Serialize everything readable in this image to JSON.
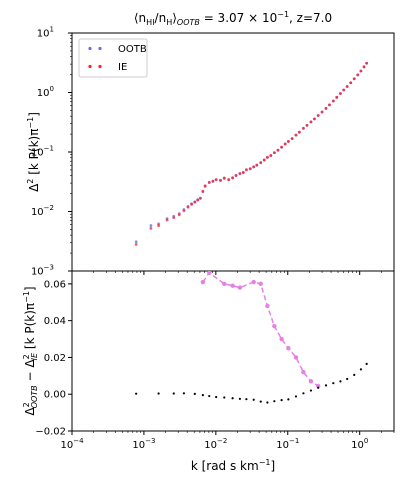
{
  "chart_data": [
    {
      "type": "scatter",
      "title_parts": {
        "lhs": "⟨n",
        "hi": "HI",
        "mid": "/n",
        "h": "H",
        "rb": "⟩",
        "ootb": "OOTB",
        "rest": " = 3.07 × 10",
        "exp": "−1",
        "z": ", z=7.0"
      },
      "ylabel_parts": {
        "d": "Δ",
        "two": "2",
        "mid": " [k P(k)π",
        "exp": "−1",
        "end": "]"
      },
      "xscale": "log",
      "yscale": "log",
      "xlim": [
        0.0001,
        3
      ],
      "ylim": [
        0.001,
        10
      ],
      "ytick_labels": [
        {
          "m": "10",
          "e": "−3",
          "v": 0.001
        },
        {
          "m": "10",
          "e": "−2",
          "v": 0.01
        },
        {
          "m": "10",
          "e": "−1",
          "v": 0.1
        },
        {
          "m": "10",
          "e": "0",
          "v": 1
        },
        {
          "m": "10",
          "e": "1",
          "v": 10
        }
      ],
      "legend": {
        "placement": "upper-left",
        "entries": [
          "OOTB",
          "IE"
        ]
      },
      "series": [
        {
          "name": "OOTB",
          "color": "#6b6bf0",
          "points": [
            [
              0.00078,
              0.0031
            ],
            [
              0.00125,
              0.0058
            ],
            [
              0.0016,
              0.0062
            ],
            [
              0.0021,
              0.0076
            ],
            [
              0.0026,
              0.0083
            ],
            [
              0.0031,
              0.0092
            ],
            [
              0.0036,
              0.0108
            ],
            [
              0.0041,
              0.0122
            ],
            [
              0.0046,
              0.0135
            ],
            [
              0.0051,
              0.0146
            ],
            [
              0.0056,
              0.0158
            ],
            [
              0.0061,
              0.0168
            ],
            [
              0.0066,
              0.0215
            ],
            [
              0.0071,
              0.0265
            ],
            [
              0.0081,
              0.0306
            ],
            [
              0.0091,
              0.032
            ],
            [
              0.0101,
              0.034
            ],
            [
              0.0116,
              0.033
            ],
            [
              0.0131,
              0.036
            ],
            [
              0.0151,
              0.034
            ],
            [
              0.0171,
              0.0365
            ],
            [
              0.0191,
              0.04
            ],
            [
              0.0216,
              0.043
            ],
            [
              0.0241,
              0.045
            ],
            [
              0.0266,
              0.05
            ],
            [
              0.0301,
              0.052
            ],
            [
              0.0336,
              0.056
            ],
            [
              0.0371,
              0.06
            ],
            [
              0.0421,
              0.066
            ],
            [
              0.0471,
              0.073
            ],
            [
              0.0521,
              0.081
            ],
            [
              0.0581,
              0.087
            ],
            [
              0.0651,
              0.097
            ],
            [
              0.0731,
              0.107
            ],
            [
              0.0821,
              0.12
            ],
            [
              0.0921,
              0.136
            ],
            [
              0.102,
              0.15
            ],
            [
              0.115,
              0.168
            ],
            [
              0.13,
              0.192
            ],
            [
              0.145,
              0.215
            ],
            [
              0.165,
              0.25
            ],
            [
              0.185,
              0.28
            ],
            [
              0.21,
              0.32
            ],
            [
              0.235,
              0.36
            ],
            [
              0.265,
              0.41
            ],
            [
              0.3,
              0.47
            ],
            [
              0.34,
              0.54
            ],
            [
              0.38,
              0.62
            ],
            [
              0.43,
              0.72
            ],
            [
              0.48,
              0.83
            ],
            [
              0.54,
              0.96
            ],
            [
              0.6,
              1.1
            ],
            [
              0.67,
              1.26
            ],
            [
              0.75,
              1.46
            ],
            [
              0.84,
              1.7
            ],
            [
              0.94,
              1.98
            ],
            [
              1.04,
              2.3
            ],
            [
              1.15,
              2.7
            ],
            [
              1.25,
              3.1
            ]
          ]
        },
        {
          "name": "IE",
          "color": "#ff2020",
          "points": [
            [
              0.00078,
              0.0028
            ],
            [
              0.00125,
              0.0052
            ],
            [
              0.0016,
              0.0058
            ],
            [
              0.0021,
              0.0072
            ],
            [
              0.0026,
              0.0079
            ],
            [
              0.0031,
              0.0088
            ],
            [
              0.0036,
              0.0103
            ],
            [
              0.0041,
              0.0118
            ],
            [
              0.0046,
              0.0132
            ],
            [
              0.0051,
              0.0143
            ],
            [
              0.0056,
              0.0155
            ],
            [
              0.0061,
              0.0166
            ],
            [
              0.0066,
              0.022
            ],
            [
              0.0071,
              0.027
            ],
            [
              0.0081,
              0.031
            ],
            [
              0.0091,
              0.0325
            ],
            [
              0.0101,
              0.0345
            ],
            [
              0.0116,
              0.0335
            ],
            [
              0.0131,
              0.0365
            ],
            [
              0.0151,
              0.0345
            ],
            [
              0.0171,
              0.037
            ],
            [
              0.0191,
              0.0405
            ],
            [
              0.0216,
              0.0435
            ],
            [
              0.0241,
              0.0455
            ],
            [
              0.0266,
              0.0505
            ],
            [
              0.0301,
              0.0525
            ],
            [
              0.0336,
              0.0565
            ],
            [
              0.0371,
              0.0605
            ],
            [
              0.0421,
              0.0665
            ],
            [
              0.0471,
              0.0735
            ],
            [
              0.0521,
              0.0815
            ],
            [
              0.0581,
              0.0875
            ],
            [
              0.0651,
              0.0975
            ],
            [
              0.0731,
              0.1075
            ],
            [
              0.0821,
              0.1205
            ],
            [
              0.0921,
              0.1365
            ],
            [
              0.102,
              0.1505
            ],
            [
              0.115,
              0.1685
            ],
            [
              0.13,
              0.1925
            ],
            [
              0.145,
              0.2155
            ],
            [
              0.165,
              0.2505
            ],
            [
              0.185,
              0.2805
            ],
            [
              0.21,
              0.3205
            ],
            [
              0.235,
              0.3605
            ],
            [
              0.265,
              0.4105
            ],
            [
              0.3,
              0.47
            ],
            [
              0.34,
              0.54
            ],
            [
              0.38,
              0.62
            ],
            [
              0.43,
              0.72
            ],
            [
              0.48,
              0.83
            ],
            [
              0.54,
              0.96
            ],
            [
              0.6,
              1.1
            ],
            [
              0.67,
              1.26
            ],
            [
              0.75,
              1.46
            ],
            [
              0.84,
              1.7
            ],
            [
              0.94,
              1.98
            ],
            [
              1.04,
              2.3
            ],
            [
              1.15,
              2.7
            ],
            [
              1.25,
              3.1
            ]
          ]
        }
      ]
    },
    {
      "type": "scatter",
      "ylabel_parts": {
        "d1": "Δ",
        "s1": "2",
        "sub1": "OOTB",
        "minus": " − Δ",
        "s2": "2",
        "sub2": "IE",
        "mid": " [k P(k)π",
        "exp": "−1",
        "end": "]"
      },
      "xlabel_parts": {
        "main": "k [rad s km",
        "exp": "−1",
        "end": "]"
      },
      "xscale": "log",
      "yscale": "linear",
      "xlim": [
        0.0001,
        3
      ],
      "ylim": [
        -0.02,
        0.067
      ],
      "xtick_labels": [
        {
          "m": "10",
          "e": "−4",
          "v": 0.0001
        },
        {
          "m": "10",
          "e": "−3",
          "v": 0.001
        },
        {
          "m": "10",
          "e": "−2",
          "v": 0.01
        },
        {
          "m": "10",
          "e": "−1",
          "v": 0.1
        },
        {
          "m": "10",
          "e": "0",
          "v": 1
        }
      ],
      "ytick_labels": [
        "−0.02",
        "0.00",
        "0.02",
        "0.04",
        "0.06"
      ],
      "ytick_values": [
        -0.02,
        0,
        0.02,
        0.04,
        0.06
      ],
      "series": [
        {
          "color": "#000000",
          "points": [
            [
              0.00078,
              0.0003
            ],
            [
              0.0016,
              0.0004
            ],
            [
              0.0026,
              0.0004
            ],
            [
              0.0036,
              0.0005
            ],
            [
              0.0051,
              0.0002
            ],
            [
              0.0066,
              -0.0005
            ],
            [
              0.0081,
              -0.001
            ],
            [
              0.0101,
              -0.0015
            ],
            [
              0.0131,
              -0.0018
            ],
            [
              0.0171,
              -0.0022
            ],
            [
              0.0216,
              -0.0025
            ],
            [
              0.0266,
              -0.0027
            ],
            [
              0.0336,
              -0.003
            ],
            [
              0.0421,
              -0.004
            ],
            [
              0.0521,
              -0.0045
            ],
            [
              0.0651,
              -0.0038
            ],
            [
              0.0821,
              -0.0032
            ],
            [
              0.102,
              -0.0028
            ],
            [
              0.13,
              -0.0012
            ],
            [
              0.165,
              0.0005
            ],
            [
              0.21,
              0.002
            ],
            [
              0.265,
              0.0035
            ],
            [
              0.34,
              0.0048
            ],
            [
              0.43,
              0.006
            ],
            [
              0.54,
              0.007
            ],
            [
              0.67,
              0.0083
            ],
            [
              0.84,
              0.0105
            ],
            [
              1.04,
              0.0135
            ],
            [
              1.25,
              0.0165
            ]
          ]
        },
        {
          "color": "#e680e6",
          "points": [
            [
              0.0066,
              0.061
            ],
            [
              0.0081,
              0.066
            ],
            [
              0.0131,
              0.06
            ],
            [
              0.0171,
              0.059
            ],
            [
              0.0216,
              0.058
            ],
            [
              0.0336,
              0.061
            ],
            [
              0.0421,
              0.06
            ],
            [
              0.0521,
              0.048
            ],
            [
              0.0651,
              0.037
            ],
            [
              0.0821,
              0.03
            ],
            [
              0.102,
              0.025
            ],
            [
              0.13,
              0.02
            ],
            [
              0.165,
              0.012
            ],
            [
              0.21,
              0.007
            ],
            [
              0.265,
              0.0045
            ]
          ]
        }
      ]
    }
  ]
}
